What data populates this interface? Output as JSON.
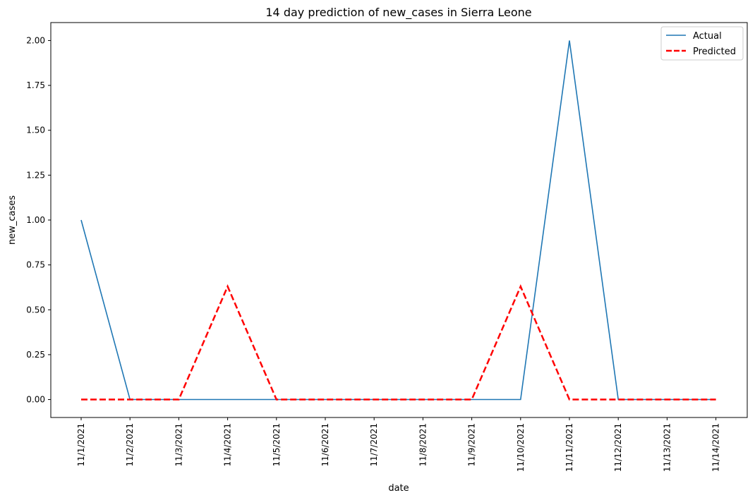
{
  "chart_data": {
    "type": "line",
    "title": "14 day prediction of new_cases in Sierra Leone",
    "xlabel": "date",
    "ylabel": "new_cases",
    "categories": [
      "11/1/2021",
      "11/2/2021",
      "11/3/2021",
      "11/4/2021",
      "11/5/2021",
      "11/6/2021",
      "11/7/2021",
      "11/8/2021",
      "11/9/2021",
      "11/10/2021",
      "11/11/2021",
      "11/12/2021",
      "11/13/2021",
      "11/14/2021"
    ],
    "ylim": [
      -0.1,
      2.1
    ],
    "yticks": [
      0.0,
      0.25,
      0.5,
      0.75,
      1.0,
      1.25,
      1.5,
      1.75,
      2.0
    ],
    "ytick_labels": [
      "0.00",
      "0.25",
      "0.50",
      "0.75",
      "1.00",
      "1.25",
      "1.50",
      "1.75",
      "2.00"
    ],
    "grid": false,
    "legend_position": "top-right",
    "series": [
      {
        "name": "Actual",
        "color": "#1f77b4",
        "style": "solid",
        "values": [
          1,
          0,
          0,
          0,
          0,
          0,
          0,
          0,
          0,
          0,
          2,
          0,
          0,
          0
        ]
      },
      {
        "name": "Predicted",
        "color": "#ff0000",
        "style": "dashed",
        "values": [
          0,
          0,
          0,
          0.63,
          0,
          0,
          0,
          0,
          0,
          0.63,
          0,
          0,
          0,
          0
        ]
      }
    ]
  }
}
